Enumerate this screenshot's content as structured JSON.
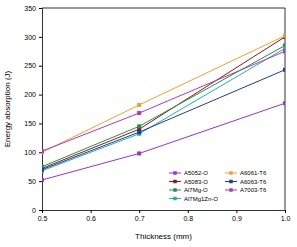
{
  "chart_data": {
    "type": "line",
    "x_label": "Thickness (mm)",
    "y_label": "Energy absorption (J)",
    "x": [
      0.5,
      0.7,
      1.0
    ],
    "xlim": [
      0.5,
      1.0
    ],
    "xticks": [
      0.5,
      0.6,
      0.7,
      0.8,
      0.9,
      {
        "value": 1.0,
        "label": "1.0"
      }
    ],
    "ylim": [
      0,
      350
    ],
    "yticks": [
      0,
      50,
      100,
      150,
      200,
      250,
      300,
      350
    ],
    "grid": false,
    "legend": "lower right",
    "marker": "square",
    "series": [
      {
        "name": "A5052-O",
        "color": "#9933cc",
        "values": [
          52,
          98,
          185
        ]
      },
      {
        "name": "A5083-O",
        "color": "#8b1a1a",
        "values": [
          72,
          140,
          300
        ]
      },
      {
        "name": "Al7Mg-O",
        "color": "#2e8b3e",
        "values": [
          75,
          145,
          285
        ]
      },
      {
        "name": "Al7Mg1Zn-O",
        "color": "#20b2aa",
        "values": [
          68,
          132,
          280
        ]
      },
      {
        "name": "A6061-T6",
        "color": "#f0a030",
        "values": [
          100,
          182,
          302
        ]
      },
      {
        "name": "A6063-T6",
        "color": "#1f3d99",
        "values": [
          70,
          135,
          243
        ]
      },
      {
        "name": "A7003-T6",
        "color": "#b03ab0",
        "values": [
          102,
          168,
          275
        ]
      }
    ]
  }
}
